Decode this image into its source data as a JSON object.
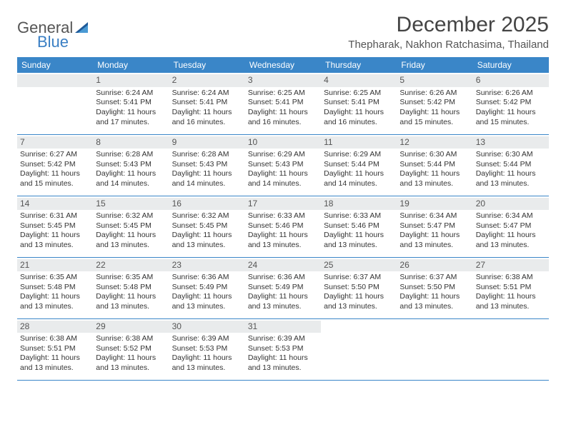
{
  "brand": {
    "word1": "General",
    "word2": "Blue",
    "logo_color_dark": "#1e5a99",
    "logo_color_light": "#4a9ad4"
  },
  "header": {
    "month_title": "December 2025",
    "location": "Thepharak, Nakhon Ratchasima, Thailand"
  },
  "colors": {
    "header_bg": "#3a86c8",
    "header_text": "#ffffff",
    "daynum_bg": "#e9ebec",
    "daynum_text": "#555555",
    "rule": "#3a86c8",
    "body_text": "#333333",
    "page_bg": "#ffffff"
  },
  "weekdays": [
    "Sunday",
    "Monday",
    "Tuesday",
    "Wednesday",
    "Thursday",
    "Friday",
    "Saturday"
  ],
  "weeks": [
    [
      null,
      {
        "n": "1",
        "sr": "Sunrise: 6:24 AM",
        "ss": "Sunset: 5:41 PM",
        "d1": "Daylight: 11 hours",
        "d2": "and 17 minutes."
      },
      {
        "n": "2",
        "sr": "Sunrise: 6:24 AM",
        "ss": "Sunset: 5:41 PM",
        "d1": "Daylight: 11 hours",
        "d2": "and 16 minutes."
      },
      {
        "n": "3",
        "sr": "Sunrise: 6:25 AM",
        "ss": "Sunset: 5:41 PM",
        "d1": "Daylight: 11 hours",
        "d2": "and 16 minutes."
      },
      {
        "n": "4",
        "sr": "Sunrise: 6:25 AM",
        "ss": "Sunset: 5:41 PM",
        "d1": "Daylight: 11 hours",
        "d2": "and 16 minutes."
      },
      {
        "n": "5",
        "sr": "Sunrise: 6:26 AM",
        "ss": "Sunset: 5:42 PM",
        "d1": "Daylight: 11 hours",
        "d2": "and 15 minutes."
      },
      {
        "n": "6",
        "sr": "Sunrise: 6:26 AM",
        "ss": "Sunset: 5:42 PM",
        "d1": "Daylight: 11 hours",
        "d2": "and 15 minutes."
      }
    ],
    [
      {
        "n": "7",
        "sr": "Sunrise: 6:27 AM",
        "ss": "Sunset: 5:42 PM",
        "d1": "Daylight: 11 hours",
        "d2": "and 15 minutes."
      },
      {
        "n": "8",
        "sr": "Sunrise: 6:28 AM",
        "ss": "Sunset: 5:43 PM",
        "d1": "Daylight: 11 hours",
        "d2": "and 14 minutes."
      },
      {
        "n": "9",
        "sr": "Sunrise: 6:28 AM",
        "ss": "Sunset: 5:43 PM",
        "d1": "Daylight: 11 hours",
        "d2": "and 14 minutes."
      },
      {
        "n": "10",
        "sr": "Sunrise: 6:29 AM",
        "ss": "Sunset: 5:43 PM",
        "d1": "Daylight: 11 hours",
        "d2": "and 14 minutes."
      },
      {
        "n": "11",
        "sr": "Sunrise: 6:29 AM",
        "ss": "Sunset: 5:44 PM",
        "d1": "Daylight: 11 hours",
        "d2": "and 14 minutes."
      },
      {
        "n": "12",
        "sr": "Sunrise: 6:30 AM",
        "ss": "Sunset: 5:44 PM",
        "d1": "Daylight: 11 hours",
        "d2": "and 13 minutes."
      },
      {
        "n": "13",
        "sr": "Sunrise: 6:30 AM",
        "ss": "Sunset: 5:44 PM",
        "d1": "Daylight: 11 hours",
        "d2": "and 13 minutes."
      }
    ],
    [
      {
        "n": "14",
        "sr": "Sunrise: 6:31 AM",
        "ss": "Sunset: 5:45 PM",
        "d1": "Daylight: 11 hours",
        "d2": "and 13 minutes."
      },
      {
        "n": "15",
        "sr": "Sunrise: 6:32 AM",
        "ss": "Sunset: 5:45 PM",
        "d1": "Daylight: 11 hours",
        "d2": "and 13 minutes."
      },
      {
        "n": "16",
        "sr": "Sunrise: 6:32 AM",
        "ss": "Sunset: 5:45 PM",
        "d1": "Daylight: 11 hours",
        "d2": "and 13 minutes."
      },
      {
        "n": "17",
        "sr": "Sunrise: 6:33 AM",
        "ss": "Sunset: 5:46 PM",
        "d1": "Daylight: 11 hours",
        "d2": "and 13 minutes."
      },
      {
        "n": "18",
        "sr": "Sunrise: 6:33 AM",
        "ss": "Sunset: 5:46 PM",
        "d1": "Daylight: 11 hours",
        "d2": "and 13 minutes."
      },
      {
        "n": "19",
        "sr": "Sunrise: 6:34 AM",
        "ss": "Sunset: 5:47 PM",
        "d1": "Daylight: 11 hours",
        "d2": "and 13 minutes."
      },
      {
        "n": "20",
        "sr": "Sunrise: 6:34 AM",
        "ss": "Sunset: 5:47 PM",
        "d1": "Daylight: 11 hours",
        "d2": "and 13 minutes."
      }
    ],
    [
      {
        "n": "21",
        "sr": "Sunrise: 6:35 AM",
        "ss": "Sunset: 5:48 PM",
        "d1": "Daylight: 11 hours",
        "d2": "and 13 minutes."
      },
      {
        "n": "22",
        "sr": "Sunrise: 6:35 AM",
        "ss": "Sunset: 5:48 PM",
        "d1": "Daylight: 11 hours",
        "d2": "and 13 minutes."
      },
      {
        "n": "23",
        "sr": "Sunrise: 6:36 AM",
        "ss": "Sunset: 5:49 PM",
        "d1": "Daylight: 11 hours",
        "d2": "and 13 minutes."
      },
      {
        "n": "24",
        "sr": "Sunrise: 6:36 AM",
        "ss": "Sunset: 5:49 PM",
        "d1": "Daylight: 11 hours",
        "d2": "and 13 minutes."
      },
      {
        "n": "25",
        "sr": "Sunrise: 6:37 AM",
        "ss": "Sunset: 5:50 PM",
        "d1": "Daylight: 11 hours",
        "d2": "and 13 minutes."
      },
      {
        "n": "26",
        "sr": "Sunrise: 6:37 AM",
        "ss": "Sunset: 5:50 PM",
        "d1": "Daylight: 11 hours",
        "d2": "and 13 minutes."
      },
      {
        "n": "27",
        "sr": "Sunrise: 6:38 AM",
        "ss": "Sunset: 5:51 PM",
        "d1": "Daylight: 11 hours",
        "d2": "and 13 minutes."
      }
    ],
    [
      {
        "n": "28",
        "sr": "Sunrise: 6:38 AM",
        "ss": "Sunset: 5:51 PM",
        "d1": "Daylight: 11 hours",
        "d2": "and 13 minutes."
      },
      {
        "n": "29",
        "sr": "Sunrise: 6:38 AM",
        "ss": "Sunset: 5:52 PM",
        "d1": "Daylight: 11 hours",
        "d2": "and 13 minutes."
      },
      {
        "n": "30",
        "sr": "Sunrise: 6:39 AM",
        "ss": "Sunset: 5:53 PM",
        "d1": "Daylight: 11 hours",
        "d2": "and 13 minutes."
      },
      {
        "n": "31",
        "sr": "Sunrise: 6:39 AM",
        "ss": "Sunset: 5:53 PM",
        "d1": "Daylight: 11 hours",
        "d2": "and 13 minutes."
      },
      null,
      null,
      null
    ]
  ]
}
